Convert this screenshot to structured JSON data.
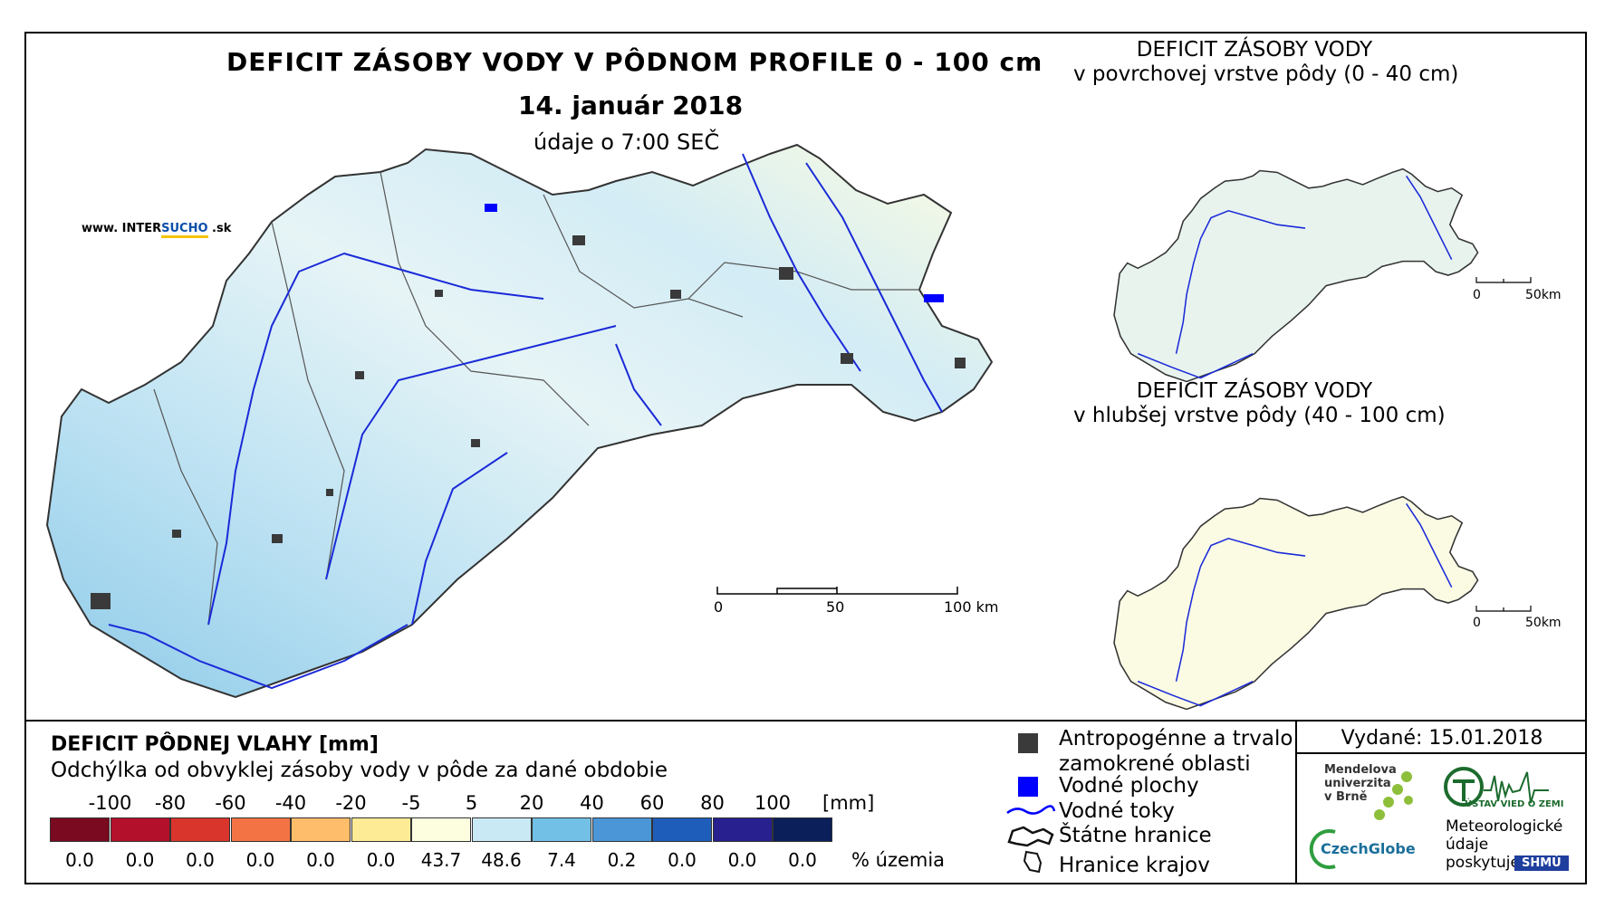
{
  "title": "DEFICIT ZÁSOBY VODY V PÔDNOM PROFILE 0 - 100 cm",
  "date": "14. január 2018",
  "data_time": "údaje o 7:00 SEČ",
  "website": {
    "prefix": "www. INTER",
    "highlight": "SUCHO",
    "suffix": " .sk"
  },
  "insets": [
    {
      "title": "DEFICIT ZÁSOBY VODY",
      "subtitle": "v povrchovej vrstve pôdy (0 - 40 cm)"
    },
    {
      "title": "DEFICIT ZÁSOBY VODY",
      "subtitle": "v hlubšej vrstve pôdy (40 - 100 cm)"
    }
  ],
  "scalebar_main": {
    "labels": [
      "0",
      "50",
      "100 km"
    ]
  },
  "scalebar_inset": {
    "labels": [
      "0",
      "50km"
    ]
  },
  "legend": {
    "title": "DEFICIT PÔDNEJ VLAHY [mm]",
    "subtitle": "Odchýlka od obvyklej zásoby vody v pôde za dané obdobie",
    "ticks": [
      "-100",
      "-80",
      "-60",
      "-40",
      "-20",
      "-5",
      "5",
      "20",
      "40",
      "60",
      "80",
      "100"
    ],
    "unit": "[mm]",
    "colors": [
      "#7a0a1f",
      "#b3102b",
      "#d9352c",
      "#f47345",
      "#fdbd6a",
      "#fdeb95",
      "#fdfde0",
      "#c9e9f4",
      "#72c0e6",
      "#4a96d6",
      "#1f5dbb",
      "#27208e",
      "#0b1f5a"
    ],
    "percentages": [
      "0.0",
      "0.0",
      "0.0",
      "0.0",
      "0.0",
      "0.0",
      "43.7",
      "48.6",
      "7.4",
      "0.2",
      "0.0",
      "0.0",
      "0.0"
    ],
    "pct_unit": "% územia"
  },
  "map_legend": [
    {
      "label": "Antropogénne a trvalo",
      "label2": "zamokrené oblasti",
      "symbol": "dark-square",
      "color": "#3a3a3a"
    },
    {
      "label": "Vodné plochy",
      "symbol": "blue-square",
      "color": "#0000ff"
    },
    {
      "label": "Vodné toky",
      "symbol": "river-line",
      "color": "#0000ff"
    },
    {
      "label": "Štátne hranice",
      "symbol": "state-border"
    },
    {
      "label": "Hranice krajov",
      "symbol": "region-border"
    }
  ],
  "issued": "Vydané: 15.01.2018",
  "logos": {
    "mendel": [
      "Mendelova",
      "univerzita",
      "v Brně"
    ],
    "czechglobe": "CzechGlobe",
    "ustav": "ÚSTAV VIED O ZEMI",
    "meteo": [
      "Meteorologické",
      "údaje",
      "poskytuje:"
    ],
    "shmu": "SHMÚ"
  }
}
